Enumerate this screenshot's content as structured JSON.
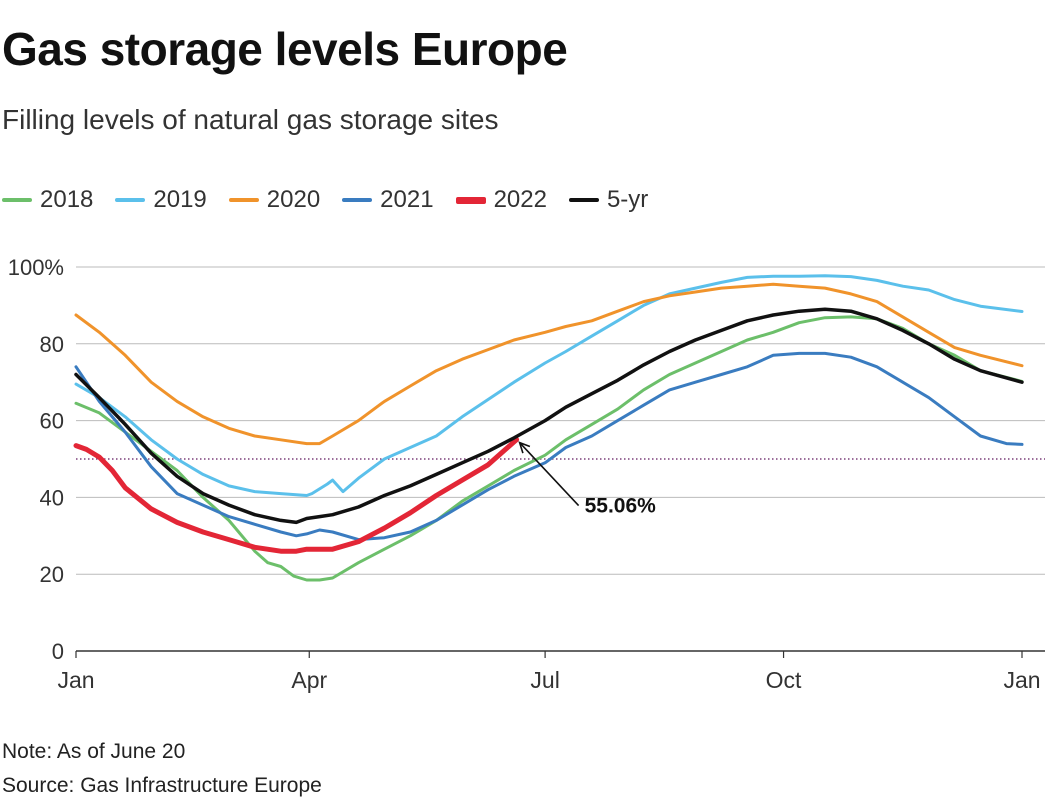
{
  "title": "Gas storage levels Europe",
  "subtitle": "Filling levels of natural gas storage sites",
  "note": "Note: As of June 20",
  "source": "Source: Gas Infrastructure Europe",
  "chart_data": {
    "type": "line",
    "title": "Gas storage levels Europe",
    "xlabel": "",
    "ylabel": "",
    "ylim": [
      0,
      100
    ],
    "xlim": [
      1,
      366
    ],
    "x_unit": "day of year",
    "x_ticks": [
      {
        "value": 1,
        "label": "Jan"
      },
      {
        "value": 91,
        "label": "Apr"
      },
      {
        "value": 182,
        "label": "Jul"
      },
      {
        "value": 274,
        "label": "Oct"
      },
      {
        "value": 366,
        "label": "Jan"
      }
    ],
    "y_ticks": [
      {
        "value": 0,
        "label": "0"
      },
      {
        "value": 20,
        "label": "20"
      },
      {
        "value": 40,
        "label": "40"
      },
      {
        "value": 60,
        "label": "60"
      },
      {
        "value": 80,
        "label": "80"
      },
      {
        "value": 100,
        "label": "100%"
      }
    ],
    "reference_line": {
      "value": 50,
      "style": "dotted",
      "color": "#7b3f7a"
    },
    "annotation": {
      "label": "55.06%",
      "x": 171,
      "y": 55.06
    },
    "series": [
      {
        "name": "2018",
        "color": "#6cbf6a",
        "width": 3,
        "x": [
          1,
          10,
          20,
          30,
          40,
          50,
          60,
          70,
          75,
          80,
          85,
          90,
          95,
          100,
          110,
          120,
          130,
          140,
          150,
          160,
          170,
          182,
          190,
          200,
          210,
          220,
          230,
          240,
          250,
          260,
          270,
          280,
          290,
          300,
          310,
          320,
          330,
          340,
          350,
          366
        ],
        "y": [
          64.5,
          62,
          57,
          52,
          47,
          40,
          34,
          26,
          23,
          22,
          19.5,
          18.5,
          18.5,
          19,
          23,
          26.5,
          30,
          34,
          39,
          43,
          47,
          51,
          55,
          59,
          63,
          68,
          72,
          75,
          78,
          81,
          83,
          85.5,
          86.8,
          87,
          86.5,
          84,
          80,
          77,
          73,
          70.2
        ]
      },
      {
        "name": "2019",
        "color": "#5bc0eb",
        "width": 3,
        "x": [
          1,
          10,
          20,
          30,
          40,
          50,
          60,
          70,
          80,
          90,
          92,
          98,
          100,
          104,
          110,
          120,
          130,
          140,
          150,
          160,
          170,
          182,
          190,
          200,
          210,
          220,
          230,
          240,
          250,
          260,
          270,
          280,
          290,
          300,
          310,
          320,
          330,
          340,
          350,
          366
        ],
        "y": [
          69.5,
          66,
          61,
          55,
          50,
          46,
          43,
          41.5,
          41,
          40.5,
          41,
          43.5,
          44.5,
          41.5,
          45,
          50,
          53,
          56,
          61,
          65.5,
          70,
          75,
          78,
          82,
          86,
          90,
          93,
          94.5,
          96,
          97.3,
          97.6,
          97.6,
          97.7,
          97.5,
          96.5,
          95,
          94,
          91.5,
          89.8,
          88.4
        ]
      },
      {
        "name": "2020",
        "color": "#f0932b",
        "width": 3,
        "x": [
          1,
          10,
          20,
          30,
          40,
          50,
          60,
          70,
          80,
          90,
          95,
          100,
          110,
          120,
          130,
          140,
          150,
          160,
          170,
          182,
          190,
          200,
          210,
          220,
          230,
          240,
          250,
          260,
          270,
          280,
          290,
          300,
          310,
          320,
          330,
          340,
          350,
          366
        ],
        "y": [
          87.5,
          83,
          77,
          70,
          65,
          61,
          58,
          56,
          55,
          54,
          54,
          56,
          60,
          65,
          69,
          73,
          76,
          78.5,
          81,
          83,
          84.5,
          86,
          88.5,
          91,
          92.5,
          93.5,
          94.5,
          95,
          95.5,
          95,
          94.5,
          93,
          91,
          87,
          83,
          79,
          77,
          74.3
        ]
      },
      {
        "name": "2021",
        "color": "#3a7cc0",
        "width": 3,
        "x": [
          1,
          10,
          20,
          30,
          40,
          50,
          60,
          70,
          80,
          86,
          90,
          95,
          100,
          110,
          120,
          130,
          140,
          150,
          160,
          170,
          182,
          190,
          200,
          210,
          220,
          230,
          240,
          250,
          260,
          270,
          280,
          290,
          300,
          310,
          320,
          330,
          340,
          350,
          360,
          366
        ],
        "y": [
          74,
          65,
          57,
          48,
          41,
          38,
          35,
          33,
          31,
          30,
          30.5,
          31.5,
          31,
          29,
          29.5,
          31,
          34,
          38,
          42,
          45.5,
          49,
          53,
          56,
          60,
          64,
          68,
          70,
          72,
          74,
          77,
          77.5,
          77.5,
          76.5,
          74,
          70,
          66,
          61,
          56,
          54,
          53.8
        ]
      },
      {
        "name": "2022",
        "color": "#e32636",
        "width": 5,
        "x": [
          1,
          5,
          10,
          15,
          20,
          30,
          40,
          50,
          60,
          70,
          80,
          86,
          90,
          95,
          100,
          110,
          120,
          130,
          140,
          150,
          160,
          165,
          171
        ],
        "y": [
          53.5,
          52.5,
          50.5,
          47,
          42.5,
          37,
          33.5,
          31,
          29,
          27,
          26,
          26,
          26.5,
          26.5,
          26.5,
          28.5,
          32,
          36,
          40.5,
          44.5,
          48.5,
          51.5,
          55.06
        ]
      },
      {
        "name": "5-yr",
        "color": "#111111",
        "width": 3.5,
        "x": [
          1,
          10,
          20,
          30,
          40,
          50,
          60,
          70,
          80,
          86,
          90,
          95,
          100,
          110,
          120,
          130,
          140,
          150,
          160,
          170,
          182,
          190,
          200,
          210,
          220,
          230,
          240,
          250,
          260,
          270,
          280,
          290,
          300,
          310,
          320,
          330,
          340,
          350,
          366
        ],
        "y": [
          72,
          66,
          59,
          51.5,
          45.5,
          41,
          38,
          35.5,
          34,
          33.5,
          34.5,
          35,
          35.5,
          37.5,
          40.5,
          43,
          46,
          49,
          52,
          55.5,
          60,
          63.5,
          67,
          70.5,
          74.5,
          78,
          81,
          83.5,
          86,
          87.5,
          88.5,
          89,
          88.5,
          86.5,
          83.5,
          80,
          76,
          73,
          70
        ]
      }
    ]
  }
}
